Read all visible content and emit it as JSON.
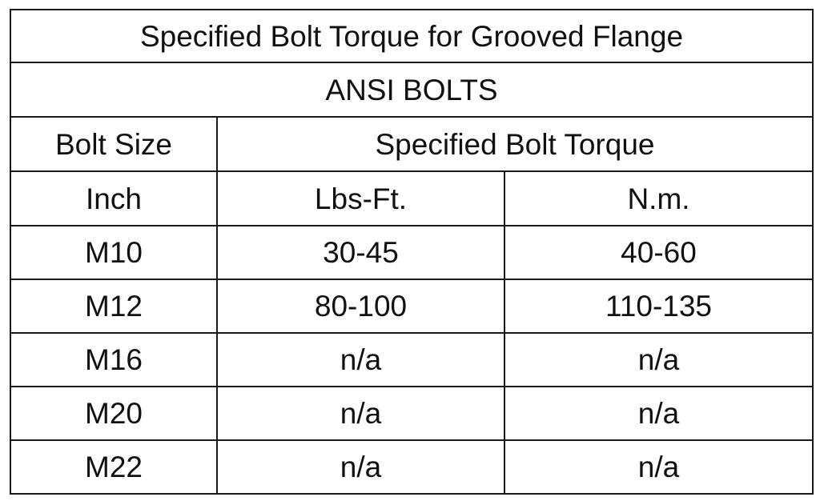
{
  "title": "Specified Bolt Torque for Grooved Flange",
  "subtitle": "ANSI BOLTS",
  "headers": {
    "bolt_size": "Bolt Size",
    "torque": "Specified Bolt Torque",
    "unit_size": "Inch",
    "unit_lbs": "Lbs-Ft.",
    "unit_nm": "N.m."
  },
  "rows": [
    {
      "size": "M10",
      "lbs": "30-45",
      "nm": "40-60"
    },
    {
      "size": "M12",
      "lbs": "80-100",
      "nm": "110-135"
    },
    {
      "size": "M16",
      "lbs": "n/a",
      "nm": "n/a"
    },
    {
      "size": "M20",
      "lbs": "n/a",
      "nm": "n/a"
    },
    {
      "size": "M22",
      "lbs": "n/a",
      "nm": "n/a"
    }
  ]
}
